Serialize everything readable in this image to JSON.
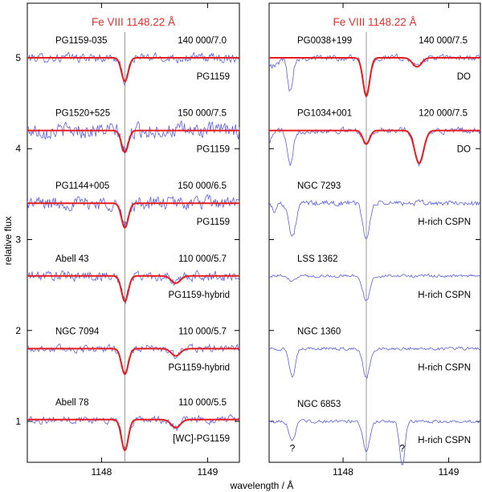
{
  "chart_data": {
    "type": "line",
    "ylabel": "relative flux",
    "xlabel": "wavelength / Å",
    "xlim": [
      1147.3,
      1149.3
    ],
    "ylim": [
      0.55,
      5.6
    ],
    "line_center": 1148.22,
    "yticks": [
      1,
      2,
      3,
      4,
      5
    ],
    "xticks": [
      1148,
      1149
    ],
    "panels": [
      {
        "title": "Fe VIII 1148.22 Å",
        "spectra": [
          {
            "star": "PG1159-035",
            "params": "140 000/7.0",
            "class": "PG1159",
            "offset": 5.0,
            "model": true,
            "depth": 0.26,
            "extra_depth": 0.0,
            "extra_at": 1148.7,
            "noise": 0.06,
            "observed_features": []
          },
          {
            "star": "PG1520+525",
            "params": "150 000/7.5",
            "class": "PG1159",
            "offset": 4.2,
            "model": true,
            "depth": 0.24,
            "extra_depth": 0.0,
            "extra_at": 1148.7,
            "noise": 0.1,
            "observed_features": []
          },
          {
            "star": "PG1144+005",
            "params": "150 000/6.5",
            "class": "PG1159",
            "offset": 3.4,
            "model": true,
            "depth": 0.27,
            "extra_depth": 0.0,
            "extra_at": 1148.7,
            "noise": 0.09,
            "observed_features": []
          },
          {
            "star": "Abell 43",
            "params": "110 000/5.7",
            "class": "PG1159-hybrid",
            "offset": 2.6,
            "model": true,
            "depth": 0.28,
            "extra_depth": 0.08,
            "extra_at": 1148.7,
            "noise": 0.07,
            "observed_features": []
          },
          {
            "star": "NGC 7094",
            "params": "110 000/5.7",
            "class": "PG1159-hybrid",
            "offset": 1.8,
            "model": true,
            "depth": 0.28,
            "extra_depth": 0.08,
            "extra_at": 1148.7,
            "noise": 0.05,
            "observed_features": []
          },
          {
            "star": "Abell 78",
            "params": "110 000/5.5",
            "class": "[WC]-PG1159",
            "offset": 1.02,
            "model": true,
            "depth": 0.34,
            "extra_depth": 0.09,
            "extra_at": 1148.7,
            "noise": 0.05,
            "observed_features": []
          }
        ]
      },
      {
        "title": "Fe VIII 1148.22 Å",
        "spectra": [
          {
            "star": "PG0038+199",
            "params": "140 000/7.5",
            "class": "DO",
            "offset": 5.0,
            "model": true,
            "depth": 0.42,
            "extra_depth": 0.1,
            "extra_at": 1148.7,
            "noise": 0.04,
            "observed_features": [
              {
                "at": 1147.5,
                "depth": 0.35,
                "width": 0.035
              },
              {
                "at": 1147.35,
                "depth": 0.1,
                "width": 0.05
              }
            ]
          },
          {
            "star": "PG1034+001",
            "params": "120 000/7.5",
            "class": "DO",
            "offset": 4.2,
            "model": true,
            "depth": 0.15,
            "extra_depth": 0.36,
            "extra_at": 1148.72,
            "noise": 0.04,
            "observed_features": [
              {
                "at": 1147.5,
                "depth": 0.4,
                "width": 0.04
              },
              {
                "at": 1147.3,
                "depth": 0.12,
                "width": 0.04
              }
            ]
          },
          {
            "star": "NGC 7293",
            "params": "",
            "class": "H-rich CSPN",
            "offset": 3.4,
            "model": false,
            "depth": 0.4,
            "extra_depth": 0.0,
            "extra_at": 1148.7,
            "noise": 0.035,
            "observed_features": [
              {
                "at": 1147.52,
                "depth": 0.38,
                "width": 0.045
              },
              {
                "at": 1147.35,
                "depth": 0.08,
                "width": 0.03
              }
            ]
          },
          {
            "star": "LSS 1362",
            "params": "",
            "class": "H-rich CSPN",
            "offset": 2.6,
            "model": false,
            "depth": 0.28,
            "extra_depth": 0.0,
            "extra_at": 1148.7,
            "noise": 0.02,
            "observed_features": [
              {
                "at": 1147.5,
                "depth": 0.05,
                "width": 0.05
              }
            ]
          },
          {
            "star": "NGC 1360",
            "params": "",
            "class": "H-rich CSPN",
            "offset": 1.8,
            "model": false,
            "depth": 0.32,
            "extra_depth": 0.0,
            "extra_at": 1148.7,
            "noise": 0.02,
            "observed_features": [
              {
                "at": 1147.52,
                "depth": 0.32,
                "width": 0.04
              }
            ]
          },
          {
            "star": "NGC 6853",
            "params": "",
            "class": "H-rich CSPN",
            "offset": 1.0,
            "model": false,
            "depth": 0.32,
            "extra_depth": 0.0,
            "extra_at": 1148.7,
            "noise": 0.02,
            "observed_features": [
              {
                "at": 1147.52,
                "depth": 0.22,
                "width": 0.04
              },
              {
                "at": 1148.56,
                "depth": 0.5,
                "width": 0.035
              }
            ]
          }
        ],
        "annotations": [
          {
            "text": "?",
            "x": 1147.52,
            "y": 0.67
          },
          {
            "text": "?",
            "x": 1148.56,
            "y": 0.67
          }
        ]
      }
    ]
  }
}
